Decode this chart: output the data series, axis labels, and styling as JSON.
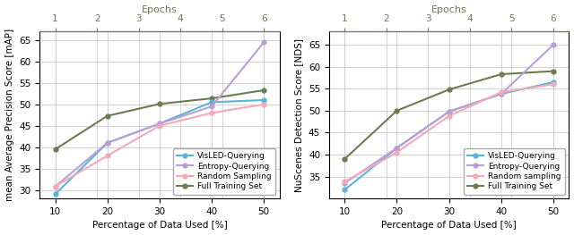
{
  "x": [
    10,
    20,
    30,
    40,
    50
  ],
  "left": {
    "ylabel": "mean Average Precision Score [mAP]",
    "xlabel": "Percentage of Data Used [%]",
    "top_xlabel": "Epochs",
    "ylim": [
      28,
      67
    ],
    "yticks": [
      30,
      35,
      40,
      45,
      50,
      55,
      60,
      65
    ],
    "full_training": [
      39.5,
      47.3,
      50.1,
      51.4,
      53.3
    ],
    "visled": [
      29.0,
      41.0,
      45.5,
      50.5,
      51.0
    ],
    "entropy": [
      30.8,
      41.0,
      45.5,
      49.5,
      64.5
    ],
    "random": [
      30.8,
      38.0,
      45.0,
      48.0,
      50.0
    ]
  },
  "right": {
    "ylabel": "NuScenes Detection Score [NDS]",
    "xlabel": "Percentage of Data Used [%]",
    "top_xlabel": "Epochs",
    "ylim": [
      30,
      68
    ],
    "yticks": [
      35,
      40,
      45,
      50,
      55,
      60,
      65
    ],
    "full_training": [
      39.0,
      50.0,
      54.8,
      58.3,
      59.0
    ],
    "visled": [
      32.0,
      41.5,
      49.8,
      53.8,
      56.5
    ],
    "entropy": [
      33.5,
      41.5,
      49.8,
      53.8,
      65.0
    ],
    "random": [
      33.8,
      40.5,
      48.8,
      54.2,
      56.0
    ]
  },
  "color_full": "#6b7c52",
  "color_visled": "#5ab4d6",
  "color_entropy": "#b89fd4",
  "color_random": "#f4a8bb",
  "legend_full": "Full Training Set",
  "legend_visled": "VisLED-Querying",
  "legend_entropy": "Entropy-Querying",
  "legend_random_left": "Random Sampling",
  "legend_random_right": "Random sampling",
  "epochs_labels": [
    "1",
    "2",
    "3",
    "4",
    "5",
    "6"
  ],
  "epoch_color": "#6b7c52"
}
